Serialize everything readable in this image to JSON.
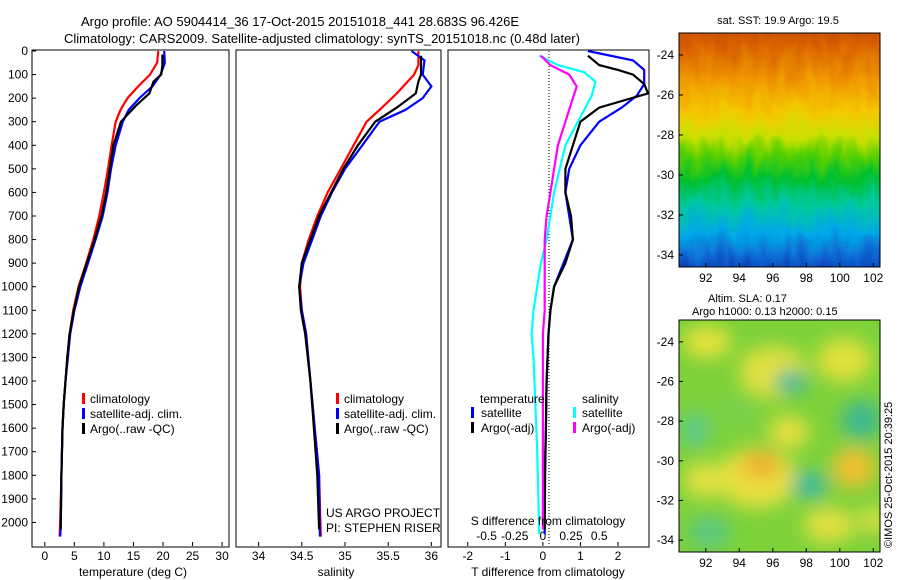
{
  "header": {
    "line1": "Argo profile: AO 5904414_36 17-Oct-2015 20151018_441 28.683S 96.426E",
    "line2": "Climatology: CARS2009. Satellite-adjusted climatology: synTS_20151018.nc (0.48d later)"
  },
  "colors": {
    "climatology": "#ff0000",
    "satellite": "#0000ff",
    "argo": "#000000",
    "satellite_salinity": "#00ffff",
    "argo_salinity": "#ff00ff"
  },
  "credit": {
    "project": "US ARGO PROJECT",
    "pi": "PI: STEPHEN RISER",
    "stamp": "©IMOS 25-Oct-2015 20:39:25"
  },
  "chart_data": [
    {
      "type": "line",
      "name": "temperature-profile",
      "xlabel": "temperature (deg C)",
      "xlim": [
        -2,
        31
      ],
      "xticks": [
        "0",
        "5",
        "10",
        "15",
        "20",
        "25",
        "30"
      ],
      "ylim": [
        2100,
        0
      ],
      "yticks": [
        "0",
        "100",
        "200",
        "300",
        "400",
        "500",
        "600",
        "700",
        "800",
        "900",
        "1000",
        "1100",
        "1200",
        "1300",
        "1400",
        "1500",
        "1600",
        "1700",
        "1800",
        "1900",
        "2000"
      ],
      "legend": [
        "climatology",
        "satellite-adj. clim.",
        "Argo(..raw -QC)"
      ],
      "series": [
        {
          "name": "climatology",
          "color": "#ff0000",
          "points": [
            [
              19.2,
              0
            ],
            [
              19.0,
              50
            ],
            [
              17.8,
              100
            ],
            [
              15.8,
              150
            ],
            [
              14.0,
              200
            ],
            [
              12.8,
              250
            ],
            [
              12.0,
              300
            ],
            [
              11.3,
              400
            ],
            [
              10.7,
              500
            ],
            [
              10.0,
              600
            ],
            [
              9.2,
              700
            ],
            [
              8.2,
              800
            ],
            [
              7.0,
              900
            ],
            [
              5.7,
              1000
            ],
            [
              4.8,
              1100
            ],
            [
              4.2,
              1200
            ],
            [
              3.8,
              1300
            ],
            [
              3.5,
              1400
            ],
            [
              3.2,
              1500
            ],
            [
              3.0,
              1600
            ],
            [
              2.8,
              1800
            ],
            [
              2.6,
              2000
            ],
            [
              2.5,
              2060
            ]
          ]
        },
        {
          "name": "satellite-adj. clim.",
          "color": "#0000ff",
          "points": [
            [
              20.2,
              0
            ],
            [
              20.3,
              50
            ],
            [
              19.6,
              100
            ],
            [
              18.2,
              150
            ],
            [
              16.0,
              200
            ],
            [
              14.2,
              250
            ],
            [
              13.2,
              300
            ],
            [
              12.0,
              400
            ],
            [
              11.2,
              500
            ],
            [
              10.6,
              600
            ],
            [
              9.8,
              700
            ],
            [
              8.6,
              800
            ],
            [
              7.3,
              900
            ],
            [
              6.0,
              1000
            ],
            [
              5.0,
              1100
            ],
            [
              4.3,
              1200
            ],
            [
              3.9,
              1300
            ],
            [
              3.5,
              1400
            ],
            [
              3.2,
              1500
            ],
            [
              3.0,
              1600
            ],
            [
              2.8,
              1800
            ],
            [
              2.7,
              2000
            ],
            [
              2.6,
              2060
            ]
          ]
        },
        {
          "name": "Argo(..raw -QC)",
          "color": "#000000",
          "points": [
            [
              19.9,
              15
            ],
            [
              19.9,
              60
            ],
            [
              19.7,
              100
            ],
            [
              18.4,
              130
            ],
            [
              17.7,
              180
            ],
            [
              15.5,
              230
            ],
            [
              14.0,
              270
            ],
            [
              12.9,
              300
            ],
            [
              11.6,
              400
            ],
            [
              11.0,
              500
            ],
            [
              10.4,
              600
            ],
            [
              9.6,
              700
            ],
            [
              8.4,
              800
            ],
            [
              7.1,
              900
            ],
            [
              5.8,
              1000
            ],
            [
              4.9,
              1100
            ],
            [
              4.2,
              1200
            ],
            [
              3.8,
              1300
            ],
            [
              3.5,
              1400
            ],
            [
              3.2,
              1500
            ],
            [
              3.0,
              1600
            ],
            [
              2.8,
              1800
            ],
            [
              2.7,
              2000
            ],
            [
              2.7,
              2030
            ]
          ]
        }
      ]
    },
    {
      "type": "line",
      "name": "salinity-profile",
      "xlabel": "salinity",
      "xlim": [
        33.75,
        36.1
      ],
      "xticks": [
        "34",
        "34.5",
        "35",
        "35.5",
        "36"
      ],
      "ylim": [
        2100,
        0
      ],
      "legend": [
        "climatology",
        "satellite-adj. clim.",
        "Argo(..raw -QC)"
      ],
      "series": [
        {
          "name": "climatology",
          "color": "#ff0000",
          "points": [
            [
              35.85,
              0
            ],
            [
              35.85,
              60
            ],
            [
              35.8,
              100
            ],
            [
              35.6,
              180
            ],
            [
              35.4,
              250
            ],
            [
              35.25,
              300
            ],
            [
              35.1,
              400
            ],
            [
              34.95,
              500
            ],
            [
              34.8,
              600
            ],
            [
              34.68,
              700
            ],
            [
              34.58,
              800
            ],
            [
              34.5,
              900
            ],
            [
              34.48,
              1000
            ],
            [
              34.5,
              1100
            ],
            [
              34.55,
              1200
            ],
            [
              34.6,
              1400
            ],
            [
              34.65,
              1600
            ],
            [
              34.7,
              1800
            ],
            [
              34.72,
              2060
            ]
          ]
        },
        {
          "name": "satellite-adj. clim.",
          "color": "#0000ff",
          "points": [
            [
              35.77,
              0
            ],
            [
              35.92,
              40
            ],
            [
              35.9,
              100
            ],
            [
              36.0,
              150
            ],
            [
              35.9,
              200
            ],
            [
              35.7,
              250
            ],
            [
              35.4,
              300
            ],
            [
              35.2,
              400
            ],
            [
              35.0,
              500
            ],
            [
              34.85,
              600
            ],
            [
              34.72,
              700
            ],
            [
              34.62,
              800
            ],
            [
              34.52,
              900
            ],
            [
              34.47,
              1000
            ],
            [
              34.5,
              1100
            ],
            [
              34.55,
              1200
            ],
            [
              34.6,
              1400
            ],
            [
              34.65,
              1600
            ],
            [
              34.7,
              1800
            ],
            [
              34.71,
              2060
            ]
          ]
        },
        {
          "name": "Argo(..raw -QC)",
          "color": "#000000",
          "points": [
            [
              35.88,
              20
            ],
            [
              35.88,
              100
            ],
            [
              35.85,
              130
            ],
            [
              35.82,
              180
            ],
            [
              35.6,
              240
            ],
            [
              35.35,
              300
            ],
            [
              35.15,
              400
            ],
            [
              34.98,
              500
            ],
            [
              34.84,
              600
            ],
            [
              34.7,
              700
            ],
            [
              34.6,
              800
            ],
            [
              34.5,
              900
            ],
            [
              34.47,
              1000
            ],
            [
              34.49,
              1100
            ],
            [
              34.54,
              1200
            ],
            [
              34.6,
              1400
            ],
            [
              34.64,
              1600
            ],
            [
              34.68,
              1800
            ],
            [
              34.7,
              2030
            ]
          ]
        }
      ]
    },
    {
      "type": "line",
      "name": "difference-profile",
      "xlabel": "T difference from climatology",
      "xlabel_s": "S difference from climatology",
      "xlim": [
        -2.5,
        2.8
      ],
      "xticks": [
        "-2",
        "-1",
        "0",
        "1",
        "2"
      ],
      "xticks_s": [
        "-0.5",
        "-0.25",
        "0",
        "0.25",
        "0.5"
      ],
      "xticks_s_values": [
        -1.5,
        -0.75,
        0,
        0.75,
        1.5
      ],
      "ylim": [
        2100,
        0
      ],
      "legend_titles": [
        "temperature",
        "salinity"
      ],
      "legend": [
        "satellite",
        "Argo(-adj)",
        "satellite",
        "Argo(-adj)"
      ],
      "series": [
        {
          "name": "temperature satellite",
          "color": "#0000ff",
          "points": [
            [
              1.2,
              0
            ],
            [
              2.4,
              40
            ],
            [
              2.7,
              80
            ],
            [
              2.7,
              140
            ],
            [
              2.5,
              190
            ],
            [
              2.1,
              240
            ],
            [
              1.5,
              300
            ],
            [
              1.0,
              400
            ],
            [
              0.7,
              500
            ],
            [
              0.6,
              600
            ],
            [
              0.7,
              700
            ],
            [
              0.8,
              800
            ],
            [
              0.55,
              900
            ],
            [
              0.3,
              1000
            ],
            [
              0.2,
              1100
            ],
            [
              0.15,
              1200
            ],
            [
              0.1,
              1400
            ],
            [
              0.08,
              1600
            ],
            [
              0.05,
              1800
            ],
            [
              0.05,
              2050
            ]
          ]
        },
        {
          "name": "temperature Argo(-adj)",
          "color": "#000000",
          "points": [
            [
              1.2,
              20
            ],
            [
              1.5,
              60
            ],
            [
              2.0,
              80
            ],
            [
              2.4,
              100
            ],
            [
              2.7,
              140
            ],
            [
              2.8,
              180
            ],
            [
              1.5,
              240
            ],
            [
              1.0,
              300
            ],
            [
              0.8,
              400
            ],
            [
              0.6,
              500
            ],
            [
              0.6,
              600
            ],
            [
              0.75,
              700
            ],
            [
              0.8,
              800
            ],
            [
              0.6,
              900
            ],
            [
              0.3,
              1000
            ],
            [
              0.2,
              1100
            ],
            [
              0.15,
              1200
            ],
            [
              0.1,
              1400
            ],
            [
              0.08,
              1600
            ],
            [
              0.06,
              1800
            ],
            [
              0.05,
              2030
            ]
          ]
        },
        {
          "name": "salinity satellite",
          "color": "#00ffff",
          "points": [
            [
              -0.1,
              20
            ],
            [
              0.4,
              60
            ],
            [
              1.1,
              90
            ],
            [
              1.4,
              130
            ],
            [
              1.3,
              190
            ],
            [
              1.0,
              280
            ],
            [
              0.6,
              400
            ],
            [
              0.3,
              600
            ],
            [
              0.1,
              800
            ],
            [
              -0.05,
              900
            ],
            [
              -0.15,
              1000
            ],
            [
              -0.25,
              1100
            ],
            [
              -0.3,
              1200
            ],
            [
              -0.25,
              1300
            ],
            [
              -0.2,
              1500
            ],
            [
              -0.15,
              1700
            ],
            [
              -0.12,
              1900
            ],
            [
              -0.1,
              2050
            ]
          ]
        },
        {
          "name": "salinity Argo(-adj)",
          "color": "#ff00ff",
          "points": [
            [
              -0.05,
              20
            ],
            [
              0.2,
              60
            ],
            [
              0.7,
              100
            ],
            [
              0.9,
              150
            ],
            [
              0.8,
              200
            ],
            [
              0.6,
              300
            ],
            [
              0.4,
              400
            ],
            [
              0.3,
              500
            ],
            [
              0.2,
              600
            ],
            [
              0.1,
              700
            ],
            [
              0.05,
              800
            ],
            [
              0.05,
              900
            ],
            [
              0.05,
              1100
            ],
            [
              0.0,
              1200
            ],
            [
              0.0,
              1500
            ],
            [
              0.0,
              1800
            ],
            [
              0.0,
              2030
            ]
          ]
        }
      ]
    },
    {
      "type": "heatmap",
      "name": "sst-map",
      "title": "sat. SST: 19.9 Argo: 19.5",
      "xticks": [
        "92",
        "94",
        "96",
        "98",
        "100",
        "102"
      ],
      "yticks": [
        "-24",
        "-26",
        "-28",
        "-30",
        "-32",
        "-34"
      ],
      "xlim": [
        90.4,
        102.4
      ],
      "ylim": [
        -34.6,
        -22.9
      ]
    },
    {
      "type": "heatmap",
      "name": "sla-map",
      "title": "Altim. SLA: 0.17",
      "subtitle": "Argo h1000: 0.13 h2000: 0.15",
      "xticks": [
        "92",
        "94",
        "96",
        "98",
        "100",
        "102"
      ],
      "yticks": [
        "-24",
        "-26",
        "-28",
        "-30",
        "-32",
        "-34"
      ],
      "xlim": [
        90.4,
        102.4
      ],
      "ylim": [
        -34.6,
        -22.9
      ]
    }
  ]
}
